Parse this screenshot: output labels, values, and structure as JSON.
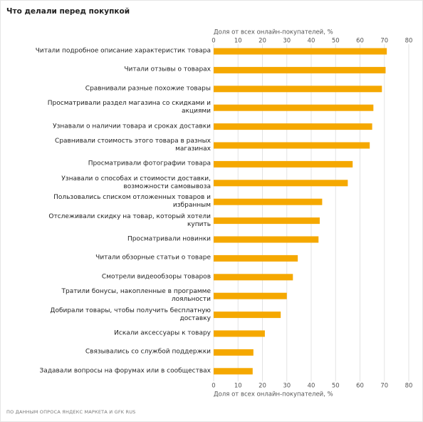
{
  "chart_data": {
    "type": "hbar",
    "title": "Что делали перед покупкой",
    "x_label": "Доля от всех онлайн-покупателей, %",
    "source": "ПО ДАННЫМ ОПРОСА ЯНДЕКС МАРКЕТА И GFK RUS",
    "categories": [
      "Читали подробное описание характеристик товара",
      "Читали отзывы о товарах",
      "Сравнивали разные похожие товары",
      "Просматривали раздел магазина со скидками и акциями",
      "Узнавали о наличии товара и сроках доставки",
      "Сравнивали стоимость этого товара в разных магазинах",
      "Просматривали фотографии товара",
      "Узнавали о способах и стоимости доставки, возможности самовывоза",
      "Пользовались списком отложенных товаров и избранным",
      "Отслеживали скидку на товар, который хотели купить",
      "Просматривали новинки",
      "Читали обзорные статьи о товаре",
      "Смотрели видеообзоры товаров",
      "Тратили бонусы, накопленные в программе лояльности",
      "Добирали товары, чтобы получить бесплатную доставку",
      "Искали аксессуары к товару",
      "Связывались со службой поддержки",
      "Задавали вопросы на форумах или в сообществах"
    ],
    "values": [
      71,
      70.5,
      69,
      65.5,
      65,
      64,
      57,
      55,
      44.5,
      43.5,
      43,
      34.5,
      32.5,
      30,
      27.5,
      21,
      16.3,
      16
    ],
    "color": "#f5a800",
    "xlim": [
      0,
      80
    ],
    "xticks": [
      0,
      10,
      20,
      30,
      40,
      50,
      60,
      70,
      80
    ],
    "grid": true
  }
}
